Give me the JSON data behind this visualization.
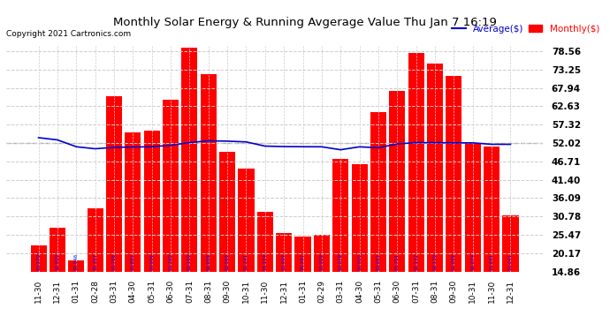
{
  "title": "Monthly Solar Energy & Running Avgerage Value Thu Jan 7 16:19",
  "copyright": "Copyright 2021 Cartronics.com",
  "categories": [
    "11-30",
    "12-31",
    "01-31",
    "02-28",
    "03-31",
    "04-30",
    "05-31",
    "06-30",
    "07-31",
    "08-31",
    "09-30",
    "10-31",
    "11-30",
    "12-31",
    "01-31",
    "02-29",
    "03-31",
    "04-30",
    "05-31",
    "06-30",
    "07-31",
    "08-31",
    "09-30",
    "10-31",
    "11-30",
    "12-31"
  ],
  "bar_values": [
    22.5,
    27.5,
    18.0,
    33.0,
    65.5,
    55.0,
    55.5,
    64.5,
    79.5,
    72.0,
    49.5,
    44.5,
    32.0,
    26.0,
    25.0,
    25.5,
    47.5,
    46.0,
    61.0,
    67.0,
    78.0,
    75.0,
    71.5,
    52.0,
    51.0,
    31.0
  ],
  "avg_values": [
    53.57,
    52.93,
    50.946,
    50.357,
    50.768,
    50.863,
    50.956,
    51.36,
    52.16,
    52.656,
    52.565,
    52.341,
    51.124,
    50.994,
    50.947,
    50.928,
    50.078,
    50.92,
    50.655,
    51.751,
    52.142,
    52.13,
    52.066,
    52.074,
    51.641,
    51.641
  ],
  "bar_color": "#ff0000",
  "avg_line_color": "#0000cc",
  "grid_color": "#cccccc",
  "background_color": "#ffffff",
  "yticks": [
    14.86,
    20.17,
    25.47,
    30.78,
    36.09,
    41.4,
    46.71,
    52.02,
    57.32,
    62.63,
    67.94,
    73.25,
    78.56
  ],
  "ylim_min": 14.86,
  "ylim_max": 80.0,
  "avg_dashed_value": 52.02,
  "legend_avg_label": "Average($)",
  "legend_monthly_label": "Monthly($)"
}
